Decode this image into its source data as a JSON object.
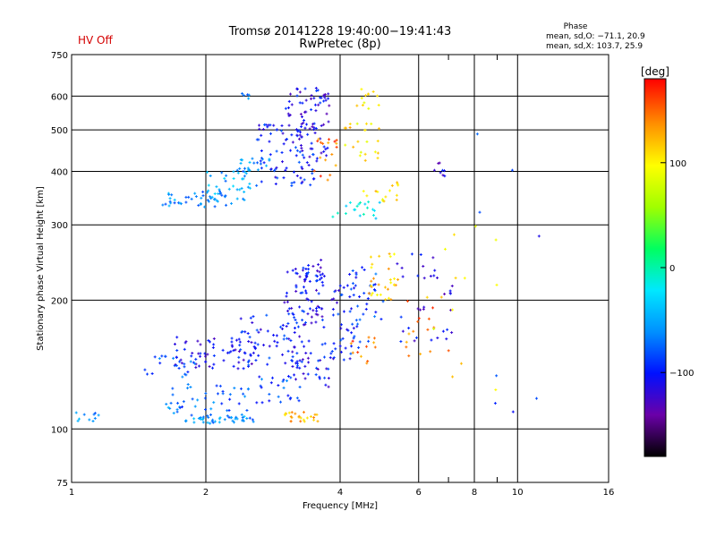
{
  "chart_data": {
    "type": "scatter",
    "title": "Tromsø 20141228 19:40:00−19:41:43",
    "subtitle": "RwPretec (8p)",
    "status_label": "HV Off",
    "phase_box": {
      "title": "Phase",
      "line1": "mean, sd,O: −71.1, 20.9",
      "line2": "mean, sd,X: 103.7, 25.9"
    },
    "xlabel": "Frequency [MHz]",
    "ylabel": "Stationary phase Virtual Height [km]",
    "x_scale": "log",
    "y_scale": "log",
    "xlim": [
      1,
      16
    ],
    "ylim": [
      75,
      750
    ],
    "xticks": [
      1,
      2,
      4,
      6,
      8,
      10,
      16
    ],
    "xticks_minor": [
      7,
      9
    ],
    "yticks": [
      75,
      100,
      200,
      300,
      400,
      500,
      600,
      750
    ],
    "x_grid": [
      2,
      4,
      6,
      8,
      10
    ],
    "y_grid": [
      100,
      200,
      300,
      400,
      500,
      600
    ],
    "grid": true,
    "colorbar": {
      "label": "[deg]",
      "min": -180,
      "max": 180,
      "ticks": [
        100,
        0,
        -100
      ],
      "tick_labels": [
        "100",
        "0",
        "−100"
      ],
      "colormap": [
        "#000000",
        "#6a00a8",
        "#0010ff",
        "#0090ff",
        "#00e8ff",
        "#00ff60",
        "#a0ff00",
        "#ffff00",
        "#ff9000",
        "#ff0000"
      ]
    },
    "clusters": [
      {
        "x_range": [
          1.0,
          1.15
        ],
        "y_range": [
          103,
          110
        ],
        "phase": -60,
        "count": 10
      },
      {
        "x_range": [
          1.62,
          1.75
        ],
        "y_range": [
          108,
          118
        ],
        "phase": -60,
        "count": 8
      },
      {
        "x_range": [
          1.8,
          2.6
        ],
        "y_range": [
          103,
          108
        ],
        "phase": -60,
        "count": 45
      },
      {
        "x_range": [
          1.6,
          2.5
        ],
        "y_range": [
          110,
          128
        ],
        "phase": -75,
        "count": 35
      },
      {
        "x_range": [
          1.7,
          2.6
        ],
        "y_range": [
          138,
          165
        ],
        "phase": -105,
        "count": 70
      },
      {
        "x_range": [
          1.45,
          1.9
        ],
        "y_range": [
          132,
          150
        ],
        "phase": -80,
        "count": 20
      },
      {
        "x_range": [
          2.3,
          3.3
        ],
        "y_range": [
          140,
          185
        ],
        "phase": -100,
        "count": 55
      },
      {
        "x_range": [
          2.6,
          3.3
        ],
        "y_range": [
          115,
          135
        ],
        "phase": -80,
        "count": 25
      },
      {
        "x_range": [
          3.1,
          3.9
        ],
        "y_range": [
          125,
          160
        ],
        "phase": -105,
        "count": 45
      },
      {
        "x_range": [
          3.0,
          3.7
        ],
        "y_range": [
          160,
          240
        ],
        "phase": -105,
        "count": 70
      },
      {
        "x_range": [
          3.3,
          3.7
        ],
        "y_range": [
          220,
          250
        ],
        "phase": -105,
        "count": 20
      },
      {
        "x_range": [
          3.0,
          3.6
        ],
        "y_range": [
          104,
          110
        ],
        "phase": 130,
        "count": 25
      },
      {
        "x_range": [
          3.8,
          4.4
        ],
        "y_range": [
          145,
          215
        ],
        "phase": -100,
        "count": 35
      },
      {
        "x_range": [
          4.0,
          5.0
        ],
        "y_range": [
          155,
          240
        ],
        "phase": -90,
        "count": 40
      },
      {
        "x_range": [
          4.6,
          5.4
        ],
        "y_range": [
          200,
          260
        ],
        "phase": 120,
        "count": 30
      },
      {
        "x_range": [
          4.2,
          4.8
        ],
        "y_range": [
          140,
          165
        ],
        "phase": 150,
        "count": 12
      },
      {
        "x_range": [
          5.3,
          7.2
        ],
        "y_range": [
          160,
          260
        ],
        "phase": -110,
        "count": 35
      },
      {
        "x_range": [
          5.6,
          7.2
        ],
        "y_range": [
          140,
          200
        ],
        "phase": 150,
        "count": 15
      },
      {
        "x_range": [
          3.8,
          5.0
        ],
        "y_range": [
          310,
          340
        ],
        "phase": -20,
        "count": 20
      },
      {
        "x_range": [
          4.5,
          5.5
        ],
        "y_range": [
          340,
          380
        ],
        "phase": 110,
        "count": 15
      },
      {
        "x_range": [
          1.6,
          2.3
        ],
        "y_range": [
          330,
          360
        ],
        "phase": -60,
        "count": 45
      },
      {
        "x_range": [
          2.0,
          2.6
        ],
        "y_range": [
          340,
          400
        ],
        "phase": -50,
        "count": 35
      },
      {
        "x_range": [
          2.35,
          2.8
        ],
        "y_range": [
          400,
          430
        ],
        "phase": -60,
        "count": 22
      },
      {
        "x_range": [
          2.6,
          3.5
        ],
        "y_range": [
          370,
          520
        ],
        "phase": -100,
        "count": 80
      },
      {
        "x_range": [
          3.0,
          3.8
        ],
        "y_range": [
          420,
          630
        ],
        "phase": -110,
        "count": 80
      },
      {
        "x_range": [
          3.5,
          3.95
        ],
        "y_range": [
          380,
          480
        ],
        "phase": 150,
        "count": 18
      },
      {
        "x_range": [
          4.0,
          4.9
        ],
        "y_range": [
          420,
          520
        ],
        "phase": 110,
        "count": 22
      },
      {
        "x_range": [
          4.2,
          4.9
        ],
        "y_range": [
          560,
          630
        ],
        "phase": 110,
        "count": 12
      },
      {
        "x_range": [
          6.5,
          7.0
        ],
        "y_range": [
          390,
          420
        ],
        "phase": -110,
        "count": 8
      },
      {
        "x_range": [
          2.4,
          2.6
        ],
        "y_range": [
          590,
          615
        ],
        "phase": -60,
        "count": 5
      },
      {
        "x_range": [
          6.0,
          9.5
        ],
        "y_range": [
          120,
          300
        ],
        "phase": 100,
        "count": 14
      },
      {
        "x_range": [
          7.5,
          12.5
        ],
        "y_range": [
          100,
          600
        ],
        "phase": -90,
        "count": 8
      }
    ]
  }
}
